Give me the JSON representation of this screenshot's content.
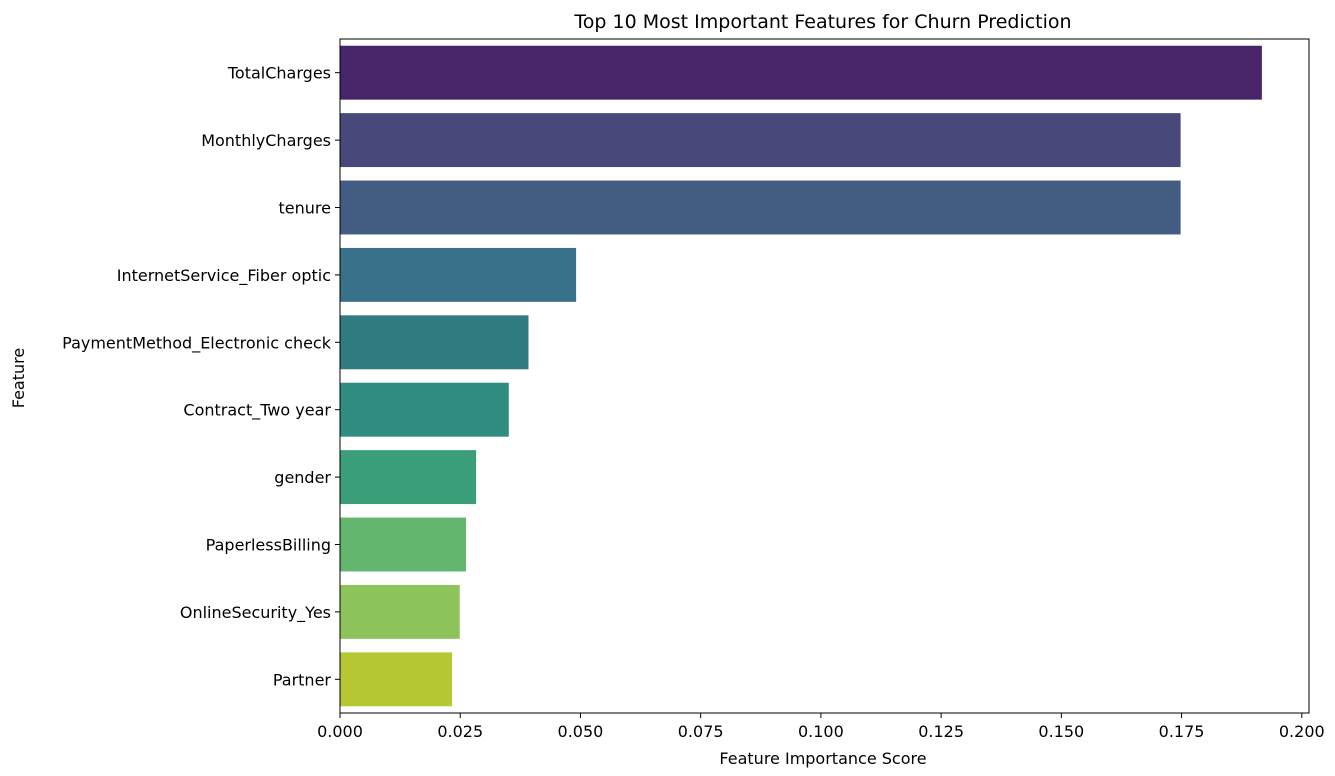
{
  "chart_data": {
    "type": "bar",
    "orientation": "horizontal",
    "title": "Top 10 Most Important Features for Churn Prediction",
    "xlabel": "Feature Importance Score",
    "ylabel": "Feature",
    "xlim": [
      0,
      0.2015
    ],
    "xticks": [
      "0.000",
      "0.025",
      "0.050",
      "0.075",
      "0.100",
      "0.125",
      "0.150",
      "0.175",
      "0.200"
    ],
    "grid": false,
    "categories": [
      "TotalCharges",
      "MonthlyCharges",
      "tenure",
      "InternetService_Fiber optic",
      "PaymentMethod_Electronic check",
      "Contract_Two year",
      "gender",
      "PaperlessBilling",
      "OnlineSecurity_Yes",
      "Partner"
    ],
    "values": [
      0.1917,
      0.1748,
      0.1748,
      0.0491,
      0.0392,
      0.0351,
      0.0283,
      0.0262,
      0.0249,
      0.0233
    ],
    "colors": [
      "#482468",
      "#48497a",
      "#425c82",
      "#39708a",
      "#2f7b7f",
      "#2f8c7e",
      "#3a9f79",
      "#62b66e",
      "#8cc35b",
      "#b5c834"
    ]
  }
}
